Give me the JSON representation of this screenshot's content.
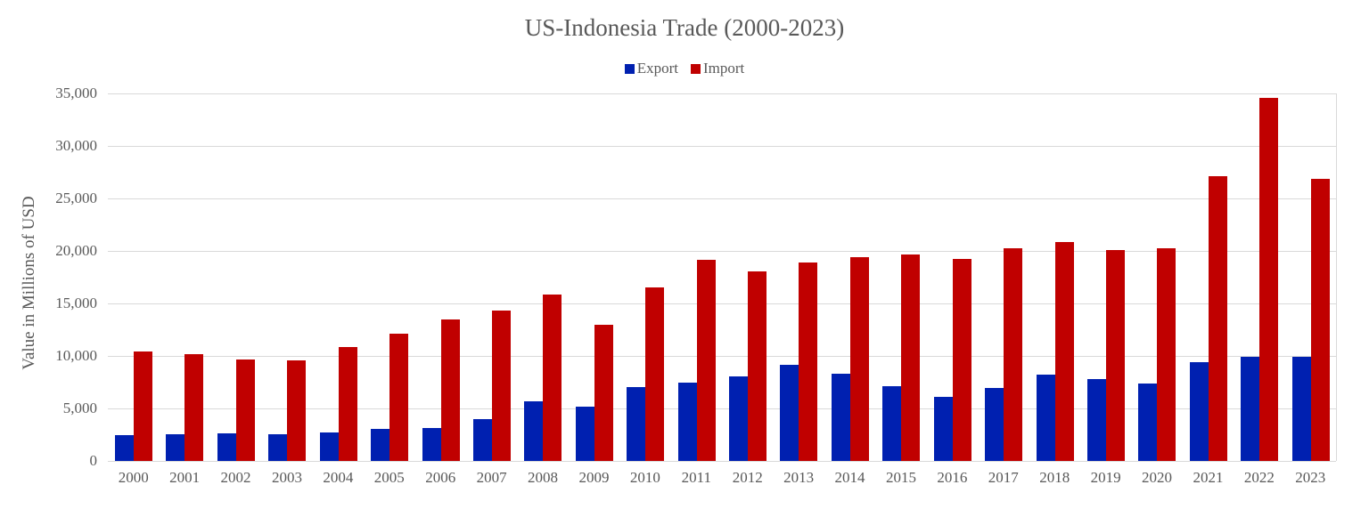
{
  "chart_data": {
    "type": "bar",
    "title": "US-Indonesia Trade (2000-2023)",
    "xlabel": "",
    "ylabel": "Value in Millions of USD",
    "ylim": [
      0,
      35000
    ],
    "yticks": [
      "0",
      "5,000",
      "10,000",
      "15,000",
      "20,000",
      "25,000",
      "30,000",
      "35,000"
    ],
    "grid": true,
    "legend_position": "top",
    "categories": [
      "2000",
      "2001",
      "2002",
      "2003",
      "2004",
      "2005",
      "2006",
      "2007",
      "2008",
      "2009",
      "2010",
      "2011",
      "2012",
      "2013",
      "2014",
      "2015",
      "2016",
      "2017",
      "2018",
      "2019",
      "2020",
      "2021",
      "2022",
      "2023"
    ],
    "series": [
      {
        "name": "Export",
        "color": "#0020B0",
        "values": [
          2460,
          2570,
          2630,
          2570,
          2740,
          3080,
          3140,
          4010,
          5700,
          5140,
          7030,
          7460,
          8050,
          9180,
          8300,
          7140,
          6070,
          6920,
          8220,
          7800,
          7400,
          9430,
          9880,
          9880
        ]
      },
      {
        "name": "Import",
        "color": "#C00000",
        "values": [
          10390,
          10140,
          9690,
          9580,
          10850,
          12090,
          13440,
          14350,
          15850,
          12960,
          16520,
          19180,
          18080,
          18910,
          19400,
          19630,
          19240,
          20220,
          20870,
          20110,
          20230,
          27080,
          34600,
          26830
        ]
      }
    ]
  }
}
